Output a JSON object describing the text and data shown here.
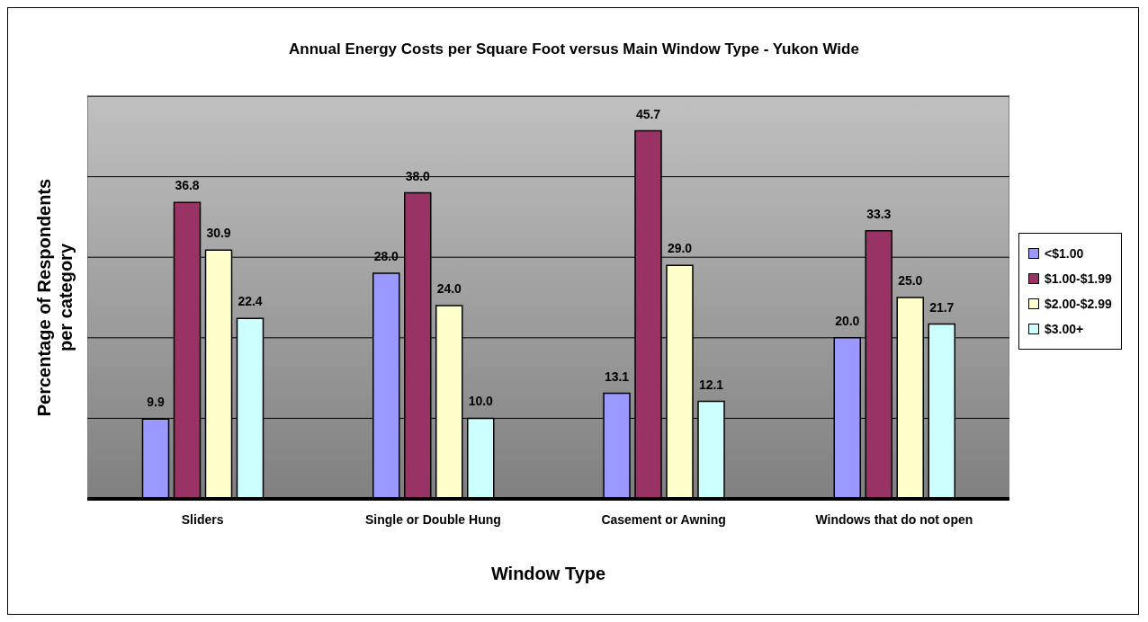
{
  "chart_data": {
    "type": "bar",
    "title": "Annual Energy Costs per Square Foot versus Main Window Type - Yukon Wide",
    "xlabel": "Window Type",
    "ylabel": "Percentage of Respondents\nper category",
    "categories": [
      "Sliders",
      "Single or Double Hung",
      "Casement or Awning",
      "Windows that do not open"
    ],
    "series": [
      {
        "name": "<$1.00",
        "color": "#9999ff",
        "values": [
          9.9,
          28.0,
          13.1,
          20.0
        ],
        "value_labels": [
          "9.9",
          "28.0",
          "13.1",
          "20.0"
        ]
      },
      {
        "name": "$1.00-$1.99",
        "color": "#993366",
        "values": [
          36.8,
          38.0,
          45.7,
          33.3
        ],
        "value_labels": [
          "36.8",
          "38.0",
          "45.7",
          "33.3"
        ]
      },
      {
        "name": "$2.00-$2.99",
        "color": "#ffffcc",
        "values": [
          30.9,
          24.0,
          29.0,
          25.0
        ],
        "value_labels": [
          "30.9",
          "24.0",
          "29.0",
          "25.0"
        ]
      },
      {
        "name": "$3.00+",
        "color": "#ccffff",
        "values": [
          22.4,
          10.0,
          12.1,
          21.7
        ],
        "value_labels": [
          "22.4",
          "10.0",
          "12.1",
          "21.7"
        ]
      }
    ],
    "ylim": [
      0,
      50
    ],
    "yticks": [
      {
        "value": 0,
        "label": null
      },
      {
        "value": 10,
        "label": null
      },
      {
        "value": 20,
        "label": null
      },
      {
        "value": 30,
        "label": null
      },
      {
        "value": 40,
        "label": null
      },
      {
        "value": 50,
        "label": null
      }
    ],
    "grid": "y",
    "legend": "right",
    "tick_labels": "x"
  }
}
